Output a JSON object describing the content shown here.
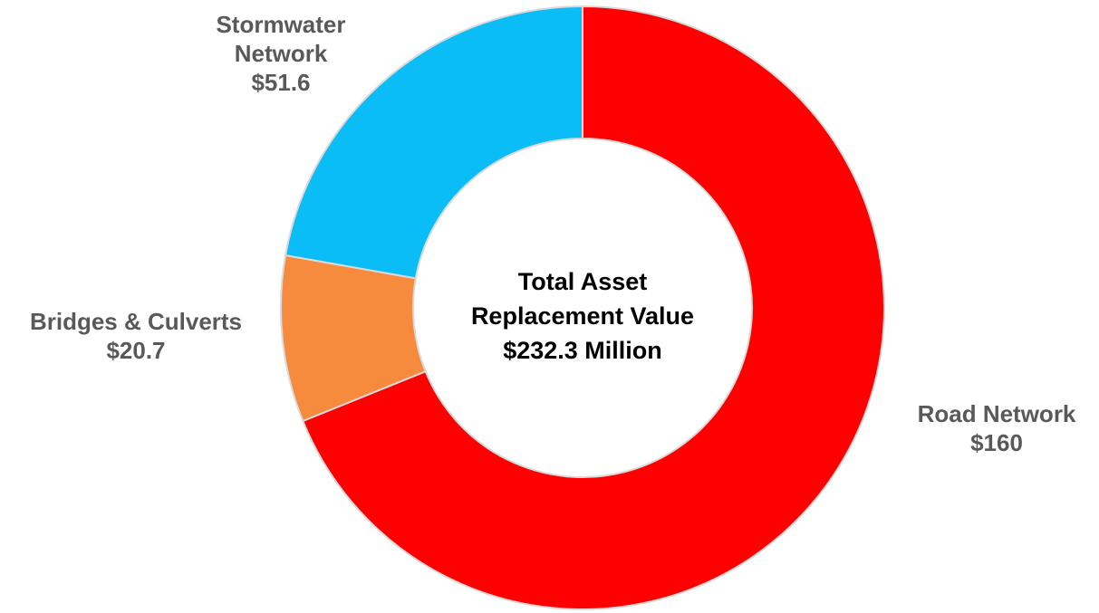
{
  "chart_data": {
    "type": "donut",
    "categories": [
      "Road Network",
      "Bridges & Culverts",
      "Stormwater Network"
    ],
    "values": [
      160,
      20.7,
      51.6
    ],
    "value_labels": [
      "$160",
      "$20.7",
      "$51.6"
    ],
    "colors": [
      "#ff0000",
      "#f68b3d",
      "#0bbdf7"
    ],
    "center_text": "Total Asset Replacement Value $232.3 Million"
  }
}
